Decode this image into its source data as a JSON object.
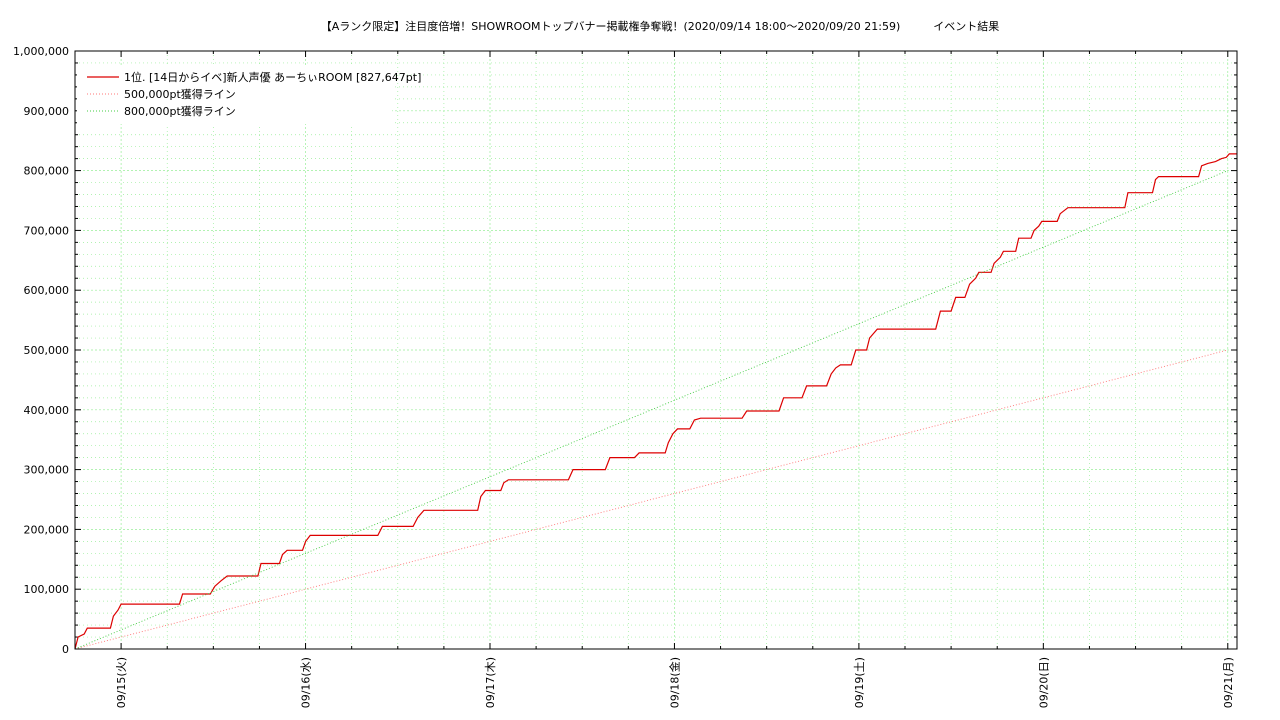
{
  "chart_data": {
    "type": "line",
    "title": "【Aランク限定】注目度倍増！SHOWROOMトップバナー掲載権争奪戦！(2020/09/14 18:00〜2020/09/20 21:59)　　　イベント結果",
    "xlabel": "",
    "ylabel": "",
    "ylim": [
      0,
      1000000
    ],
    "y_ticks": [
      0,
      100000,
      200000,
      300000,
      400000,
      500000,
      600000,
      700000,
      800000,
      900000,
      1000000
    ],
    "y_tick_labels": [
      "0",
      "100,000",
      "200,000",
      "300,000",
      "400,000",
      "500,000",
      "600,000",
      "700,000",
      "800,000",
      "900,000",
      "1,000,000"
    ],
    "x_unit": "hours since 2020/09/14 18:00",
    "xlim": [
      0,
      151.2
    ],
    "x_ticks": [
      {
        "x": 6,
        "label": "09/15(火)"
      },
      {
        "x": 30,
        "label": "09/16(水)"
      },
      {
        "x": 54,
        "label": "09/17(木)"
      },
      {
        "x": 78,
        "label": "09/18(金)"
      },
      {
        "x": 102,
        "label": "09/19(土)"
      },
      {
        "x": 126,
        "label": "09/20(日)"
      },
      {
        "x": 150,
        "label": "09/21(月)"
      }
    ],
    "grid": true,
    "legend_position": "top-left",
    "colors": {
      "series": "#dd0000",
      "line500k": "#ff7777",
      "line800k": "#44cc44",
      "grid": "#99ee99"
    },
    "series": [
      {
        "name": "1位. [14日からイベ]新人声優 あーちぃROOM [827,647pt]",
        "style": "solid",
        "points": [
          [
            0,
            0
          ],
          [
            0.4,
            20000
          ],
          [
            1.2,
            25000
          ],
          [
            1.6,
            35000
          ],
          [
            4.6,
            35000
          ],
          [
            5.0,
            55000
          ],
          [
            5.6,
            65000
          ],
          [
            6.0,
            75000
          ],
          [
            13.6,
            75000
          ],
          [
            14.0,
            92000
          ],
          [
            17.6,
            92000
          ],
          [
            18.2,
            105000
          ],
          [
            19.0,
            114000
          ],
          [
            19.8,
            122000
          ],
          [
            23.8,
            122000
          ],
          [
            24.2,
            143000
          ],
          [
            26.6,
            143000
          ],
          [
            27.0,
            158000
          ],
          [
            27.6,
            165000
          ],
          [
            29.6,
            165000
          ],
          [
            30.0,
            180000
          ],
          [
            30.6,
            190000
          ],
          [
            39.4,
            190000
          ],
          [
            40.0,
            205000
          ],
          [
            44.0,
            205000
          ],
          [
            44.6,
            220000
          ],
          [
            45.4,
            232000
          ],
          [
            52.4,
            232000
          ],
          [
            52.8,
            255000
          ],
          [
            53.4,
            265000
          ],
          [
            55.4,
            265000
          ],
          [
            55.8,
            278000
          ],
          [
            56.4,
            283000
          ],
          [
            64.2,
            283000
          ],
          [
            64.8,
            300000
          ],
          [
            69.0,
            300000
          ],
          [
            69.6,
            320000
          ],
          [
            72.8,
            320000
          ],
          [
            73.4,
            328000
          ],
          [
            76.8,
            328000
          ],
          [
            77.2,
            345000
          ],
          [
            77.8,
            360000
          ],
          [
            78.4,
            368000
          ],
          [
            80.0,
            368000
          ],
          [
            80.6,
            383000
          ],
          [
            81.4,
            386000
          ],
          [
            86.8,
            386000
          ],
          [
            87.4,
            398000
          ],
          [
            91.6,
            398000
          ],
          [
            92.2,
            420000
          ],
          [
            94.6,
            420000
          ],
          [
            95.2,
            440000
          ],
          [
            97.8,
            440000
          ],
          [
            98.4,
            460000
          ],
          [
            99.0,
            470000
          ],
          [
            99.6,
            475000
          ],
          [
            101.0,
            475000
          ],
          [
            101.6,
            500000
          ],
          [
            103.0,
            500000
          ],
          [
            103.4,
            520000
          ],
          [
            104.4,
            535000
          ],
          [
            112.0,
            535000
          ],
          [
            112.6,
            565000
          ],
          [
            114.0,
            565000
          ],
          [
            114.6,
            588000
          ],
          [
            115.8,
            588000
          ],
          [
            116.4,
            610000
          ],
          [
            117.2,
            620000
          ],
          [
            117.6,
            630000
          ],
          [
            119.2,
            630000
          ],
          [
            119.6,
            645000
          ],
          [
            120.4,
            655000
          ],
          [
            120.8,
            665000
          ],
          [
            122.4,
            665000
          ],
          [
            122.8,
            687000
          ],
          [
            124.4,
            687000
          ],
          [
            124.8,
            700000
          ],
          [
            125.4,
            707000
          ],
          [
            125.8,
            715000
          ],
          [
            127.8,
            715000
          ],
          [
            128.2,
            728000
          ],
          [
            129.2,
            738000
          ],
          [
            136.6,
            738000
          ],
          [
            137.0,
            763000
          ],
          [
            140.2,
            763000
          ],
          [
            140.6,
            785000
          ],
          [
            141.0,
            790000
          ],
          [
            146.2,
            790000
          ],
          [
            146.6,
            808000
          ],
          [
            147.4,
            812000
          ],
          [
            148.4,
            815000
          ],
          [
            149.2,
            820000
          ],
          [
            149.8,
            822000
          ],
          [
            150.2,
            828000
          ],
          [
            151.2,
            828000
          ]
        ]
      },
      {
        "name": "500,000pt獲得ライン",
        "style": "dotted",
        "points": [
          [
            0,
            0
          ],
          [
            150,
            500000
          ]
        ]
      },
      {
        "name": "800,000pt獲得ライン",
        "style": "dotted",
        "points": [
          [
            0,
            0
          ],
          [
            150,
            800000
          ]
        ]
      }
    ]
  }
}
